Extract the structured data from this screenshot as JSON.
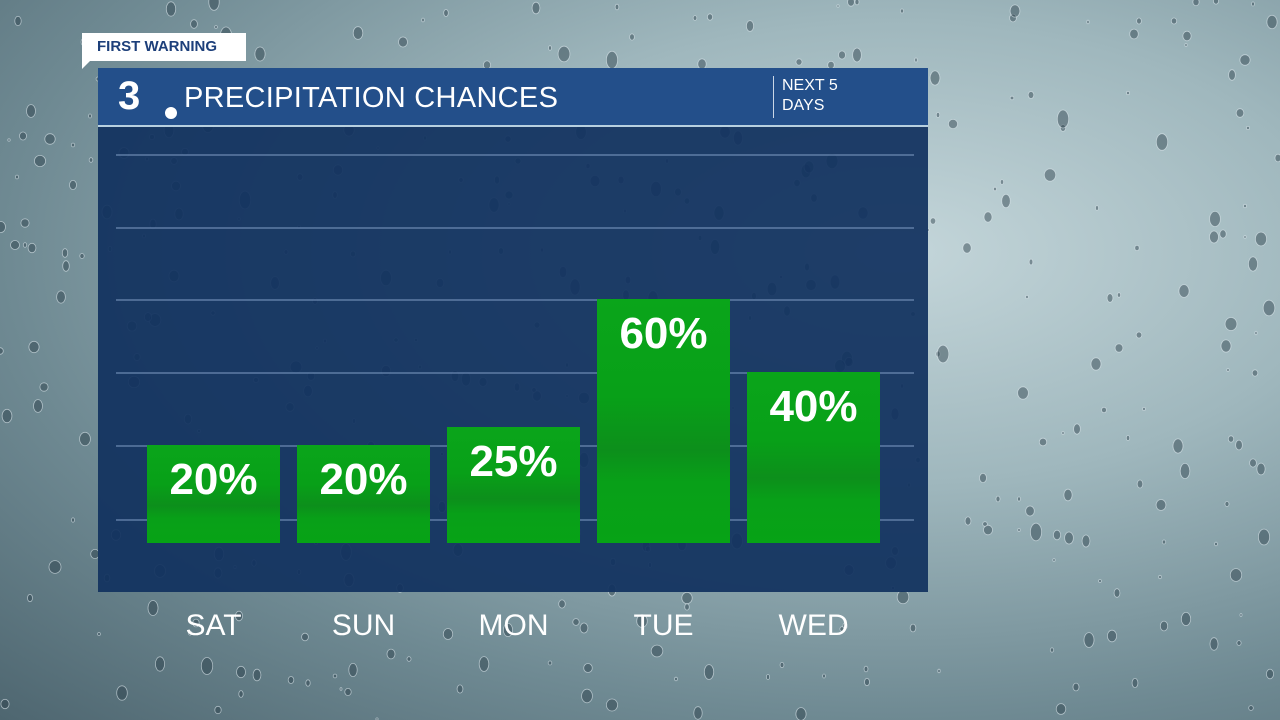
{
  "badge": "FIRST WARNING",
  "header": {
    "logo": "3",
    "title": "PRECIPITATION CHANCES",
    "subtitle_line1": "NEXT 5",
    "subtitle_line2": "DAYS"
  },
  "colors": {
    "bar": "#08a018",
    "panel": "#11325f",
    "header": "#234f8a"
  },
  "chart_data": {
    "type": "bar",
    "title": "PRECIPITATION CHANCES",
    "categories": [
      "SAT",
      "SUN",
      "MON",
      "TUE",
      "WED"
    ],
    "values": [
      20,
      20,
      25,
      60,
      40
    ],
    "labels": [
      "20%",
      "20%",
      "25%",
      "60%",
      "40%"
    ],
    "unit": "%",
    "grid": true
  }
}
